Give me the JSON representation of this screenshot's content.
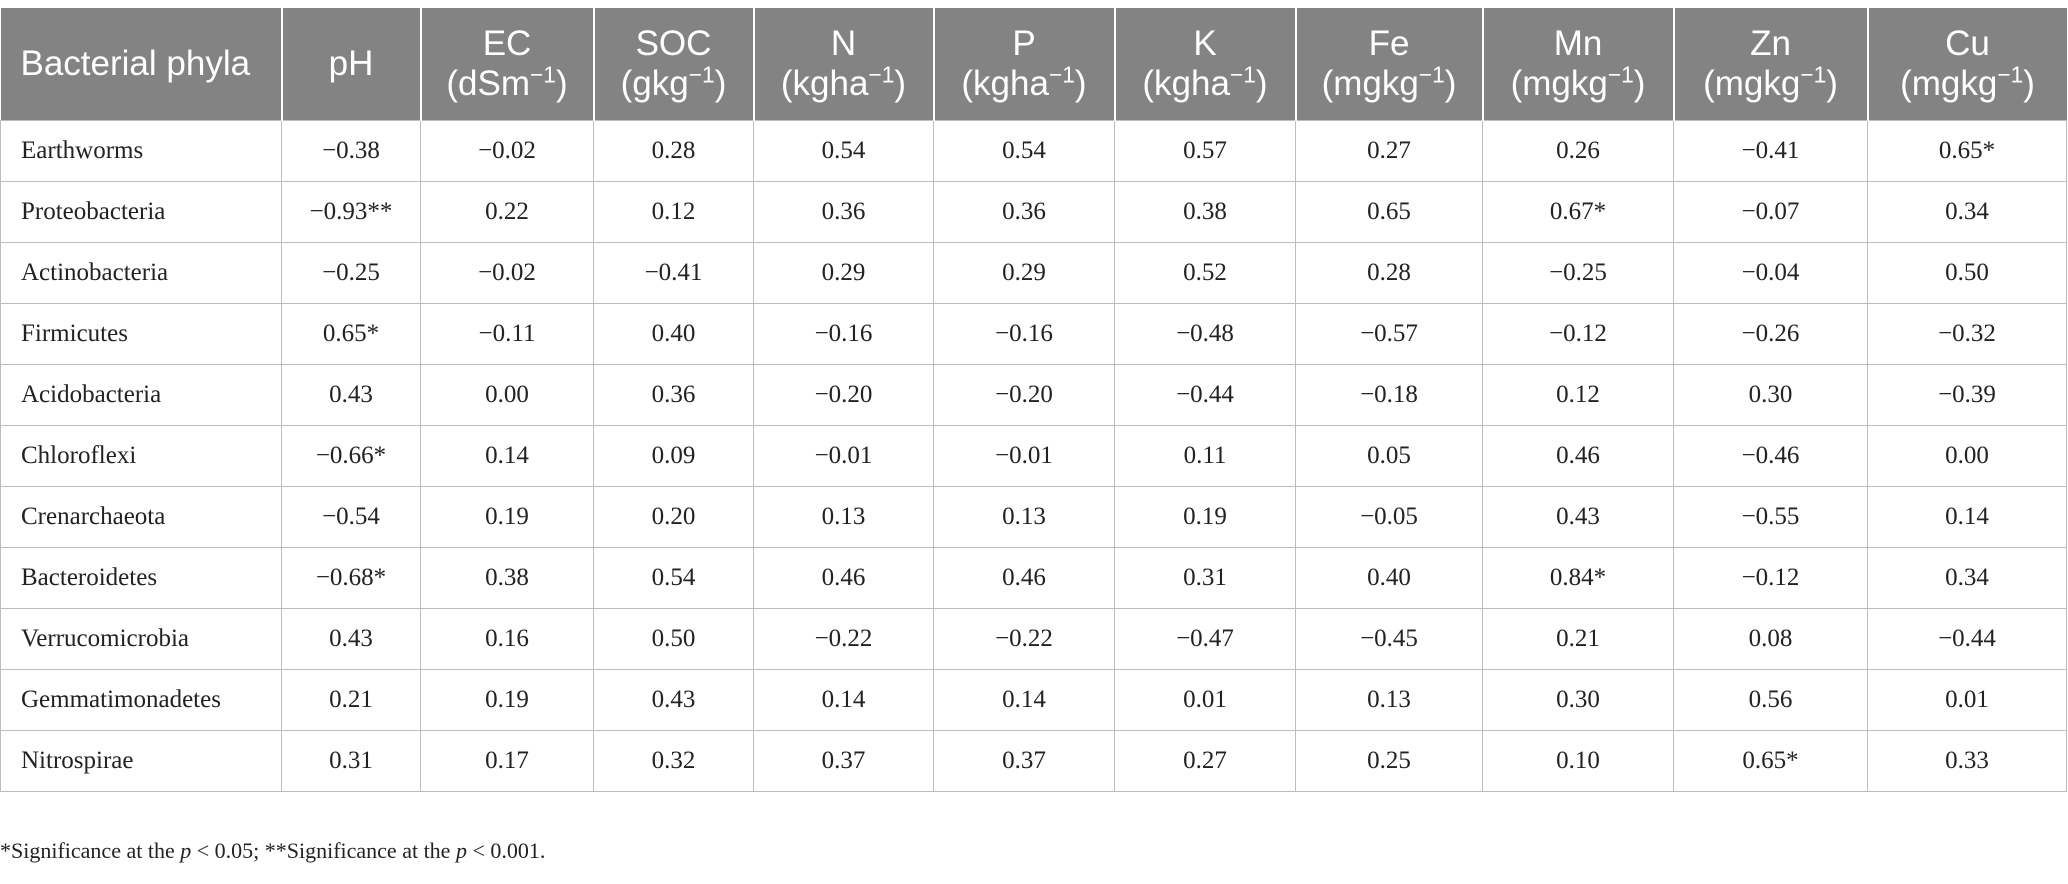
{
  "header": {
    "phyla": "Bacterial phyla",
    "cols": [
      {
        "name": "pH",
        "unit": ""
      },
      {
        "name": "EC",
        "unit": "(dSm",
        "exp": "−1",
        "close": ")"
      },
      {
        "name": "SOC",
        "unit": "(gkg",
        "exp": "−1",
        "close": ")"
      },
      {
        "name": "N",
        "unit": "(kgha",
        "exp": "−1",
        "close": ")"
      },
      {
        "name": "P",
        "unit": "(kgha",
        "exp": "−1",
        "close": ")"
      },
      {
        "name": "K",
        "unit": "(kgha",
        "exp": "−1",
        "close": ")"
      },
      {
        "name": "Fe",
        "unit": "(mgkg",
        "exp": "−1",
        "close": ")"
      },
      {
        "name": "Mn",
        "unit": "(mgkg",
        "exp": "−1",
        "close": ")"
      },
      {
        "name": "Zn",
        "unit": "(mgkg",
        "exp": "−1",
        "close": ")"
      },
      {
        "name": "Cu",
        "unit": "(mgkg",
        "exp": "−1",
        "close": ")"
      }
    ]
  },
  "rows": [
    {
      "name": "Earthworms",
      "values": [
        "−0.38",
        "−0.02",
        "0.28",
        "0.54",
        "0.54",
        "0.57",
        "0.27",
        "0.26",
        "−0.41",
        "0.65*"
      ]
    },
    {
      "name": "Proteobacteria",
      "values": [
        "−0.93**",
        "0.22",
        "0.12",
        "0.36",
        "0.36",
        "0.38",
        "0.65",
        "0.67*",
        "−0.07",
        "0.34"
      ]
    },
    {
      "name": "Actinobacteria",
      "values": [
        "−0.25",
        "−0.02",
        "−0.41",
        "0.29",
        "0.29",
        "0.52",
        "0.28",
        "−0.25",
        "−0.04",
        "0.50"
      ]
    },
    {
      "name": "Firmicutes",
      "values": [
        "0.65*",
        "−0.11",
        "0.40",
        "−0.16",
        "−0.16",
        "−0.48",
        "−0.57",
        "−0.12",
        "−0.26",
        "−0.32"
      ]
    },
    {
      "name": "Acidobacteria",
      "values": [
        "0.43",
        "0.00",
        "0.36",
        "−0.20",
        "−0.20",
        "−0.44",
        "−0.18",
        "0.12",
        "0.30",
        "−0.39"
      ]
    },
    {
      "name": "Chloroflexi",
      "values": [
        "−0.66*",
        "0.14",
        "0.09",
        "−0.01",
        "−0.01",
        "0.11",
        "0.05",
        "0.46",
        "−0.46",
        "0.00"
      ]
    },
    {
      "name": "Crenarchaeota",
      "values": [
        "−0.54",
        "0.19",
        "0.20",
        "0.13",
        "0.13",
        "0.19",
        "−0.05",
        "0.43",
        "−0.55",
        "0.14"
      ]
    },
    {
      "name": "Bacteroidetes",
      "values": [
        "−0.68*",
        "0.38",
        "0.54",
        "0.46",
        "0.46",
        "0.31",
        "0.40",
        "0.84*",
        "−0.12",
        "0.34"
      ]
    },
    {
      "name": "Verrucomicrobia",
      "values": [
        "0.43",
        "0.16",
        "0.50",
        "−0.22",
        "−0.22",
        "−0.47",
        "−0.45",
        "0.21",
        "0.08",
        "−0.44"
      ]
    },
    {
      "name": "Gemmatimonadetes",
      "values": [
        "0.21",
        "0.19",
        "0.43",
        "0.14",
        "0.14",
        "0.01",
        "0.13",
        "0.30",
        "0.56",
        "0.01"
      ]
    },
    {
      "name": "Nitrospirae",
      "values": [
        "0.31",
        "0.17",
        "0.32",
        "0.37",
        "0.37",
        "0.27",
        "0.25",
        "0.10",
        "0.65*",
        "0.33"
      ]
    }
  ],
  "footnote": {
    "a": "*Significance at the ",
    "p1": "p",
    "b": " < 0.05; **Significance at the ",
    "p2": "p",
    "c": " < 0.001."
  }
}
